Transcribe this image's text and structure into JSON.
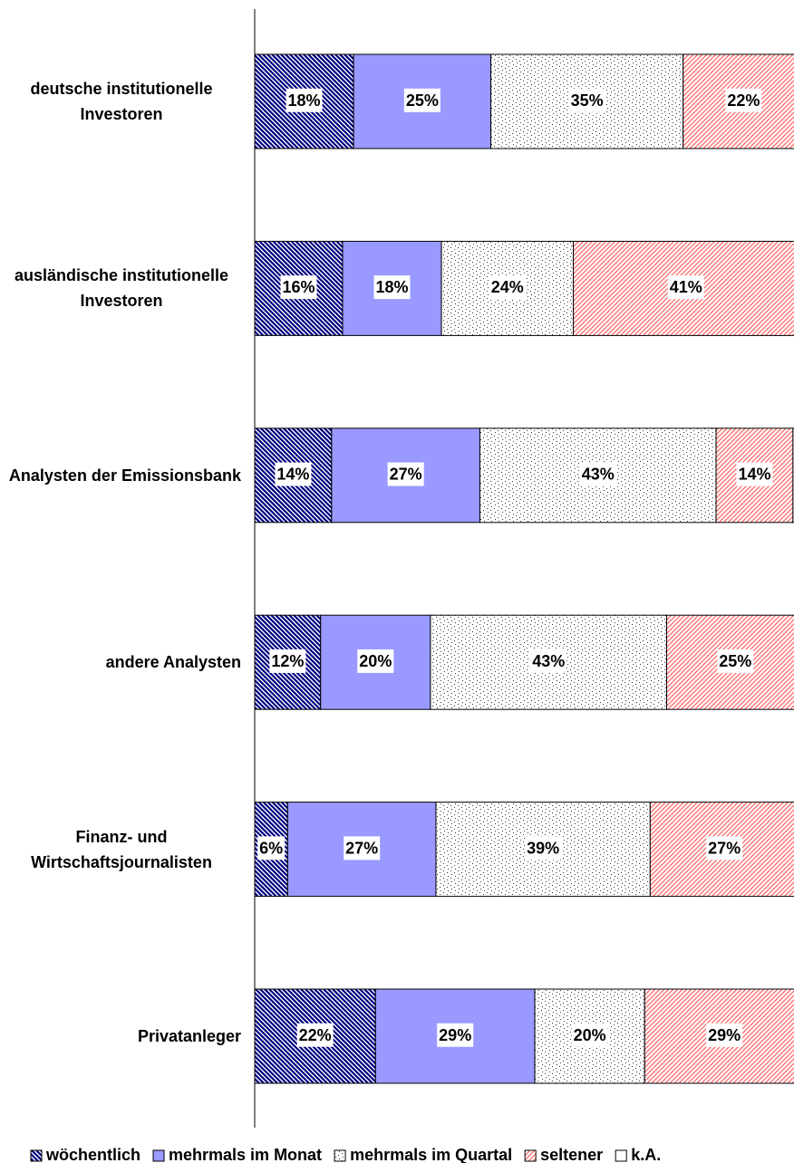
{
  "chart_data": {
    "type": "stacked-bar-horizontal",
    "categories": [
      "deutsche institutionelle Investoren",
      "ausländische institutionelle Investoren",
      "Analysten der Emissionsbank",
      "andere Analysten",
      "Finanz- und Wirtschaftsjournalisten",
      "Privatanleger"
    ],
    "xlim": [
      0,
      100
    ],
    "legend": "bottom",
    "series": [
      {
        "name": "wöchentlich",
        "color": "#000080",
        "pattern": "hatch",
        "values": [
          18,
          16,
          14,
          12,
          6,
          22
        ],
        "value_labels": [
          "18%",
          "16%",
          "14%",
          "12%",
          "6%",
          "22%"
        ]
      },
      {
        "name": "mehrmals im Monat",
        "color": "#9999ff",
        "pattern": "solid",
        "values": [
          25,
          18,
          27,
          20,
          27,
          29
        ],
        "value_labels": [
          "25%",
          "18%",
          "27%",
          "20%",
          "27%",
          "29%"
        ]
      },
      {
        "name": "mehrmals im Quartal",
        "color": "#333333",
        "pattern": "dots",
        "values": [
          35,
          24,
          43,
          43,
          39,
          20
        ],
        "value_labels": [
          "35%",
          "24%",
          "43%",
          "43%",
          "39%",
          "20%"
        ]
      },
      {
        "name": "seltener",
        "color": "#ff6666",
        "pattern": "stripes",
        "values": [
          22,
          41,
          14,
          25,
          27,
          29
        ],
        "value_labels": [
          "22%",
          "41%",
          "14%",
          "25%",
          "27%",
          "29%"
        ]
      },
      {
        "name": "k.A.",
        "color": "#ffffff",
        "pattern": "solid",
        "values": [
          0,
          1,
          2,
          0,
          1,
          0
        ]
      }
    ]
  }
}
